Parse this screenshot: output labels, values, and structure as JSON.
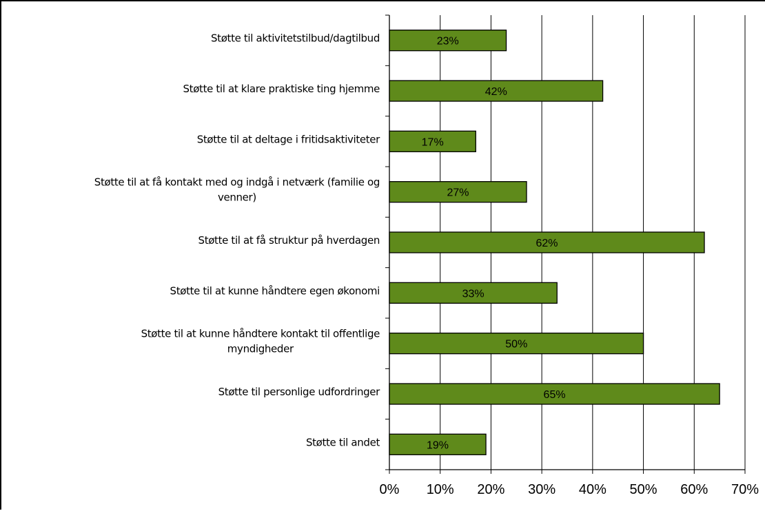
{
  "chart_data": {
    "type": "bar",
    "orientation": "horizontal",
    "categories": [
      "Støtte til aktivitetstilbud/dagtilbud",
      "Støtte til at klare praktiske ting hjemme",
      "Støtte til at deltage i fritidsaktiviteter",
      [
        "Støtte til at få kontakt med og indgå i netværk (familie og",
        "venner)"
      ],
      "Støtte til at få struktur på hverdagen",
      "Støtte til at kunne håndtere egen økonomi",
      [
        "Støtte til at kunne håndtere kontakt til offentlige",
        "myndigheder"
      ],
      "Støtte til personlige udfordringer",
      "Støtte til andet"
    ],
    "values": [
      23,
      42,
      17,
      27,
      62,
      33,
      50,
      65,
      19
    ],
    "data_labels": [
      "23%",
      "42%",
      "17%",
      "27%",
      "62%",
      "33%",
      "50%",
      "65%",
      "19%"
    ],
    "xlim": [
      0,
      70
    ],
    "x_ticks": [
      "0%",
      "10%",
      "20%",
      "30%",
      "40%",
      "50%",
      "60%",
      "70%"
    ],
    "grid": "vertical",
    "bar_color": "#5f8a1b",
    "bar_border_color": "#000000",
    "title": "",
    "xlabel": "",
    "ylabel": ""
  }
}
